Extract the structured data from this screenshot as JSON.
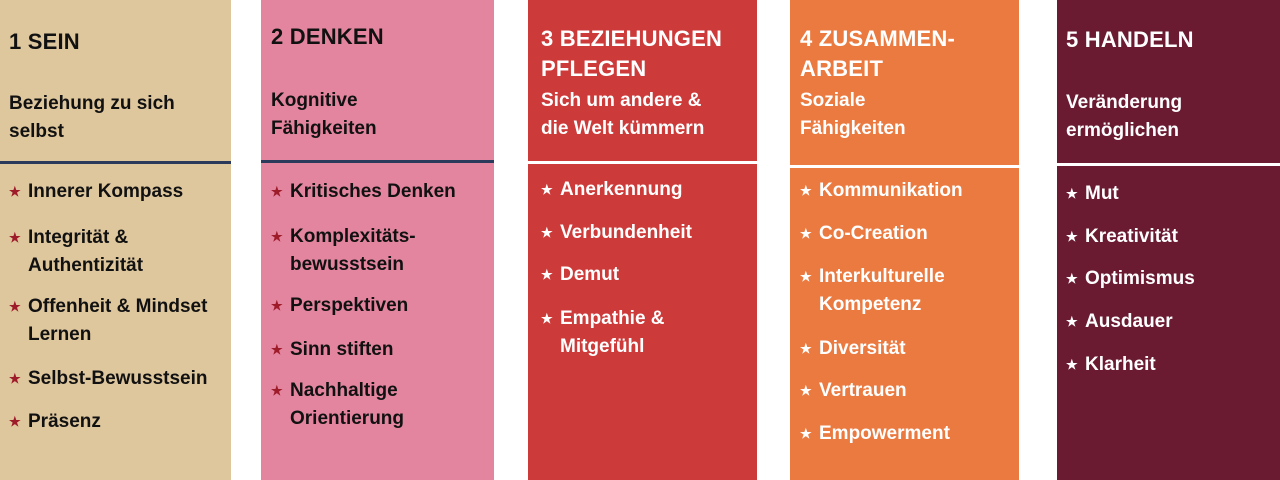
{
  "columns": [
    {
      "title": "1 SEIN",
      "subtitle": "Beziehung zu sich\nselbst",
      "colors": {
        "background": "#dec69d",
        "text": "#111111",
        "star": "#9e1b2a",
        "rule": "#2b3a5a"
      },
      "items": [
        "Innerer Kompass",
        "Integrität &\nAuthentizität",
        "Offenheit & Mindset\nLernen",
        "Selbst-Bewusstsein",
        "Präsenz"
      ]
    },
    {
      "title": "2 DENKEN",
      "subtitle": "Kognitive\nFähigkeiten",
      "colors": {
        "background": "#e4859f",
        "text": "#111111",
        "star": "#9e1b2a",
        "rule": "#2b3a5a"
      },
      "items": [
        "Kritisches Denken",
        "Komplexitäts-\nbewusstsein",
        "Perspektiven",
        "Sinn stiften",
        "Nachhaltige\nOrientierung"
      ]
    },
    {
      "title": "3 BEZIEHUNGEN\nPFLEGEN",
      "subtitle": " Sich um andere &\ndie Welt kümmern",
      "colors": {
        "background": "#cc3a39",
        "text": "#ffffff",
        "star": "#ffffff",
        "rule": "#ffffff"
      },
      "items": [
        "Anerkennung",
        "Verbundenheit",
        "Demut",
        "Empathie &\nMitgefühl"
      ]
    },
    {
      "title": "4 ZUSAMMEN-\nARBEIT",
      "subtitle": "Soziale\nFähigkeiten",
      "colors": {
        "background": "#ea7a40",
        "text": "#ffffff",
        "star": "#ffffff",
        "rule": "#ffffff"
      },
      "items": [
        "Kommunikation",
        "Co-Creation",
        "Interkulturelle\nKompetenz",
        "Diversität",
        "Vertrauen",
        "Empowerment"
      ]
    },
    {
      "title": "5 HANDELN",
      "subtitle": "Veränderung\nermöglichen",
      "colors": {
        "background": "#6a1b32",
        "text": "#ffffff",
        "star": "#ffffff",
        "rule": "#ffffff"
      },
      "items": [
        "Mut",
        "Kreativität",
        "Optimismus",
        "Ausdauer",
        "Klarheit"
      ]
    }
  ],
  "bullet_icon": "star-icon"
}
